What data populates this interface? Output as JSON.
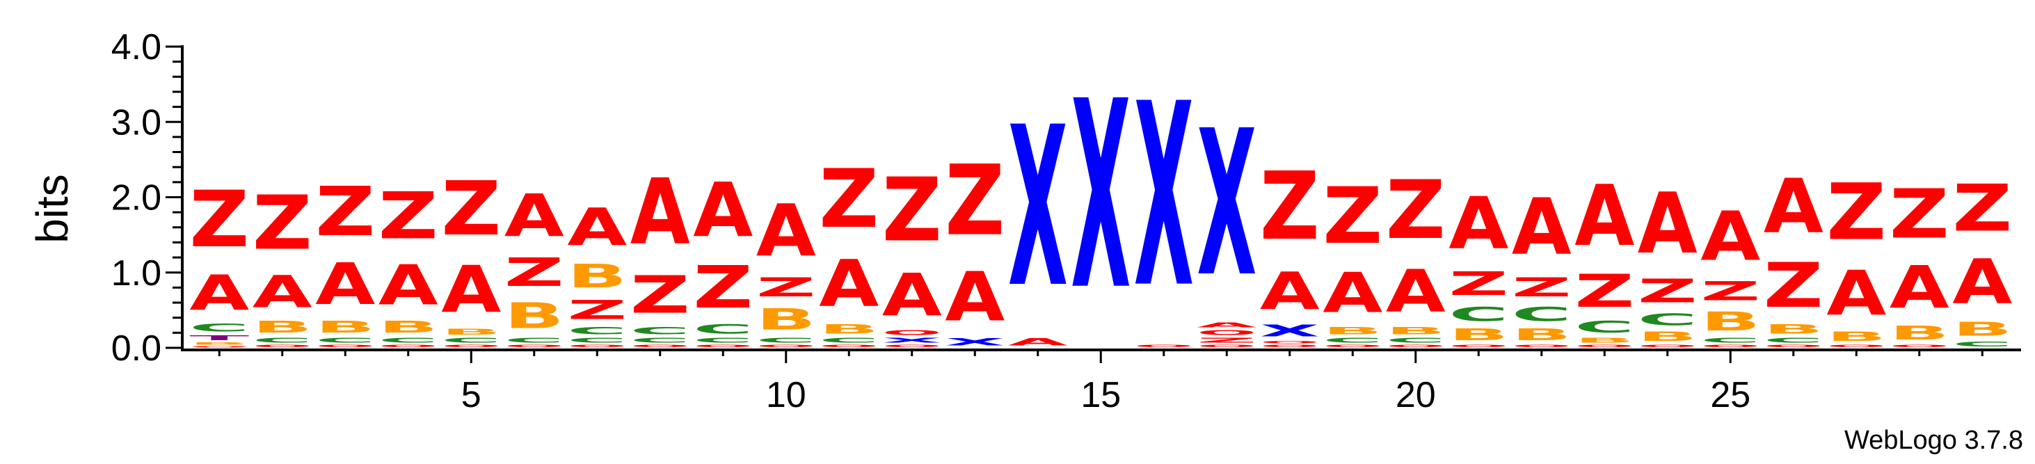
{
  "chart_data": {
    "type": "sequence-logo",
    "ylabel": "bits",
    "ylim": [
      0,
      4
    ],
    "yticks": [
      "0.0",
      "1.0",
      "2.0",
      "3.0",
      "4.0"
    ],
    "xlim": [
      1,
      29
    ],
    "xticks": [
      "5",
      "10",
      "15",
      "20",
      "25"
    ],
    "xtick_values": [
      5,
      10,
      15,
      20,
      25
    ],
    "footer": "WebLogo 3.7.8",
    "colors": {
      "A": "#ff0000",
      "Z": "#ff0000",
      "X": "#0000ff",
      "B": "#ff9900",
      "C": "#208820",
      "T": "#800080",
      "O": "#ff0000"
    },
    "positions": [
      {
        "pos": 1,
        "stack": [
          [
            "O",
            0.03
          ],
          [
            "B",
            0.05
          ],
          [
            "T",
            0.1
          ],
          [
            "C",
            0.17
          ],
          [
            "A",
            0.75
          ],
          [
            "Z",
            1.2
          ]
        ]
      },
      {
        "pos": 2,
        "stack": [
          [
            "O",
            0.05
          ],
          [
            "C",
            0.1
          ],
          [
            "B",
            0.25
          ],
          [
            "A",
            0.68
          ],
          [
            "Z",
            1.15
          ]
        ]
      },
      {
        "pos": 3,
        "stack": [
          [
            "O",
            0.05
          ],
          [
            "C",
            0.1
          ],
          [
            "B",
            0.25
          ],
          [
            "A",
            0.88
          ],
          [
            "Z",
            1.05
          ]
        ]
      },
      {
        "pos": 4,
        "stack": [
          [
            "O",
            0.05
          ],
          [
            "C",
            0.1
          ],
          [
            "B",
            0.25
          ],
          [
            "A",
            0.85
          ],
          [
            "Z",
            1.0
          ]
        ]
      },
      {
        "pos": 5,
        "stack": [
          [
            "O",
            0.05
          ],
          [
            "C",
            0.1
          ],
          [
            "B",
            0.12
          ],
          [
            "A",
            1.0
          ],
          [
            "Z",
            1.15
          ]
        ]
      },
      {
        "pos": 6,
        "stack": [
          [
            "O",
            0.05
          ],
          [
            "C",
            0.1
          ],
          [
            "B",
            0.55
          ],
          [
            "Z",
            0.6
          ],
          [
            "A",
            0.9
          ]
        ]
      },
      {
        "pos": 7,
        "stack": [
          [
            "O",
            0.05
          ],
          [
            "C",
            0.1
          ],
          [
            "C",
            0.15
          ],
          [
            "Z",
            0.4
          ],
          [
            "B",
            0.5
          ],
          [
            "A",
            0.8
          ]
        ]
      },
      {
        "pos": 8,
        "stack": [
          [
            "O",
            0.05
          ],
          [
            "C",
            0.1
          ],
          [
            "C",
            0.15
          ],
          [
            "Z",
            0.8
          ],
          [
            "A",
            1.4
          ]
        ]
      },
      {
        "pos": 9,
        "stack": [
          [
            "O",
            0.05
          ],
          [
            "C",
            0.1
          ],
          [
            "C",
            0.2
          ],
          [
            "Z",
            0.9
          ],
          [
            "A",
            1.15
          ]
        ]
      },
      {
        "pos": 10,
        "stack": [
          [
            "O",
            0.05
          ],
          [
            "C",
            0.1
          ],
          [
            "B",
            0.45
          ],
          [
            "Z",
            0.4
          ],
          [
            "A",
            1.1
          ]
        ]
      },
      {
        "pos": 11,
        "stack": [
          [
            "O",
            0.05
          ],
          [
            "C",
            0.1
          ],
          [
            "B",
            0.2
          ],
          [
            "A",
            1.0
          ],
          [
            "Z",
            1.25
          ]
        ]
      },
      {
        "pos": 12,
        "stack": [
          [
            "O",
            0.05
          ],
          [
            "X",
            0.1
          ],
          [
            "O",
            0.1
          ],
          [
            "A",
            0.9
          ],
          [
            "Z",
            1.35
          ]
        ]
      },
      {
        "pos": 13,
        "stack": [
          [
            "X",
            0.15
          ],
          [
            "A",
            1.05
          ],
          [
            "Z",
            1.5
          ]
        ]
      },
      {
        "pos": 14,
        "stack": [
          [
            "A",
            0.15
          ],
          [
            "X",
            3.4
          ]
        ]
      },
      {
        "pos": 15,
        "stack": [
          [
            "X",
            4.0
          ]
        ]
      },
      {
        "pos": 16,
        "stack": [
          [
            "O",
            0.05
          ],
          [
            "X",
            3.9
          ]
        ]
      },
      {
        "pos": 17,
        "stack": [
          [
            "O",
            0.05
          ],
          [
            "Z",
            0.1
          ],
          [
            "O",
            0.1
          ],
          [
            "A",
            0.1
          ],
          [
            "X",
            3.1
          ]
        ]
      },
      {
        "pos": 18,
        "stack": [
          [
            "O",
            0.05
          ],
          [
            "O",
            0.05
          ],
          [
            "X",
            0.25
          ],
          [
            "A",
            0.8
          ],
          [
            "Z",
            1.45
          ]
        ]
      },
      {
        "pos": 19,
        "stack": [
          [
            "O",
            0.05
          ],
          [
            "C",
            0.1
          ],
          [
            "B",
            0.15
          ],
          [
            "A",
            0.85
          ],
          [
            "Z",
            1.2
          ]
        ]
      },
      {
        "pos": 20,
        "stack": [
          [
            "O",
            0.05
          ],
          [
            "C",
            0.1
          ],
          [
            "B",
            0.15
          ],
          [
            "A",
            0.9
          ],
          [
            "Z",
            1.25
          ]
        ]
      },
      {
        "pos": 21,
        "stack": [
          [
            "O",
            0.05
          ],
          [
            "B",
            0.25
          ],
          [
            "C",
            0.3
          ],
          [
            "Z",
            0.5
          ],
          [
            "A",
            1.1
          ]
        ]
      },
      {
        "pos": 22,
        "stack": [
          [
            "O",
            0.05
          ],
          [
            "B",
            0.25
          ],
          [
            "C",
            0.3
          ],
          [
            "Z",
            0.4
          ],
          [
            "A",
            1.2
          ]
        ]
      },
      {
        "pos": 23,
        "stack": [
          [
            "O",
            0.05
          ],
          [
            "B",
            0.1
          ],
          [
            "C",
            0.25
          ],
          [
            "Z",
            0.7
          ],
          [
            "A",
            1.3
          ]
        ]
      },
      {
        "pos": 24,
        "stack": [
          [
            "O",
            0.05
          ],
          [
            "B",
            0.2
          ],
          [
            "C",
            0.25
          ],
          [
            "Z",
            0.5
          ],
          [
            "A",
            1.3
          ]
        ]
      },
      {
        "pos": 25,
        "stack": [
          [
            "O",
            0.05
          ],
          [
            "C",
            0.1
          ],
          [
            "B",
            0.4
          ],
          [
            "Z",
            0.4
          ],
          [
            "A",
            1.05
          ]
        ]
      },
      {
        "pos": 26,
        "stack": [
          [
            "O",
            0.05
          ],
          [
            "C",
            0.1
          ],
          [
            "B",
            0.2
          ],
          [
            "Z",
            0.95
          ],
          [
            "A",
            1.15
          ]
        ]
      },
      {
        "pos": 27,
        "stack": [
          [
            "O",
            0.05
          ],
          [
            "B",
            0.2
          ],
          [
            "A",
            0.95
          ],
          [
            "Z",
            1.2
          ]
        ]
      },
      {
        "pos": 28,
        "stack": [
          [
            "O",
            0.05
          ],
          [
            "B",
            0.3
          ],
          [
            "A",
            0.9
          ],
          [
            "Z",
            1.05
          ]
        ]
      },
      {
        "pos": 29,
        "stack": [
          [
            "C",
            0.1
          ],
          [
            "B",
            0.3
          ],
          [
            "A",
            0.95
          ],
          [
            "Z",
            1.0
          ]
        ]
      }
    ]
  }
}
